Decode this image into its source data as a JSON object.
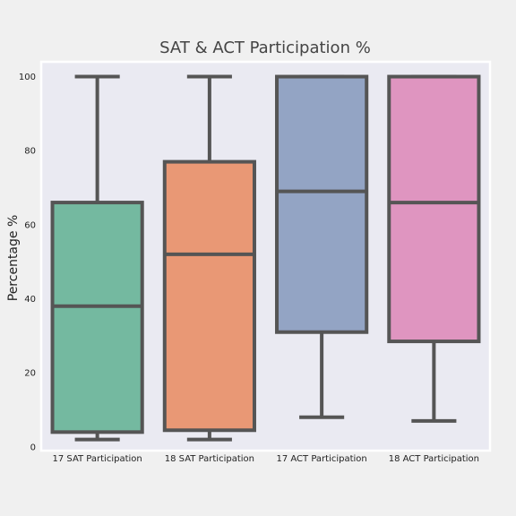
{
  "chart_data": {
    "type": "box",
    "title": "SAT & ACT Participation %",
    "xlabel": "",
    "ylabel": "Percentage %",
    "ylim": [
      -1,
      104
    ],
    "yticks": [
      0,
      20,
      40,
      60,
      80,
      100
    ],
    "ytick_labels": [
      "0",
      "20",
      "40",
      "60",
      "80",
      "100"
    ],
    "grid": false,
    "legend": "none",
    "categories": [
      "17 SAT Participation",
      "18 SAT Participation",
      "17 ACT Participation",
      "18 ACT Participation"
    ],
    "boxes": [
      {
        "category": "17 SAT Participation",
        "whisker_low": 2,
        "q1": 4,
        "median": 38,
        "q3": 66,
        "whisker_high": 100,
        "color": "#74b9a0"
      },
      {
        "category": "18 SAT Participation",
        "whisker_low": 2,
        "q1": 4.5,
        "median": 52,
        "q3": 77,
        "whisker_high": 100,
        "color": "#e99875"
      },
      {
        "category": "17 ACT Participation",
        "whisker_low": 8,
        "q1": 31,
        "median": 69,
        "q3": 100,
        "whisker_high": 100,
        "color": "#93a4c4"
      },
      {
        "category": "18 ACT Participation",
        "whisker_low": 7,
        "q1": 28.5,
        "median": 66,
        "q3": 100,
        "whisker_high": 100,
        "color": "#df95c0"
      }
    ]
  },
  "colors": {
    "figure_background": "#f0f0f0",
    "axes_background": "#eaeaf2",
    "box_edge": "#555555",
    "text": "#444444"
  }
}
